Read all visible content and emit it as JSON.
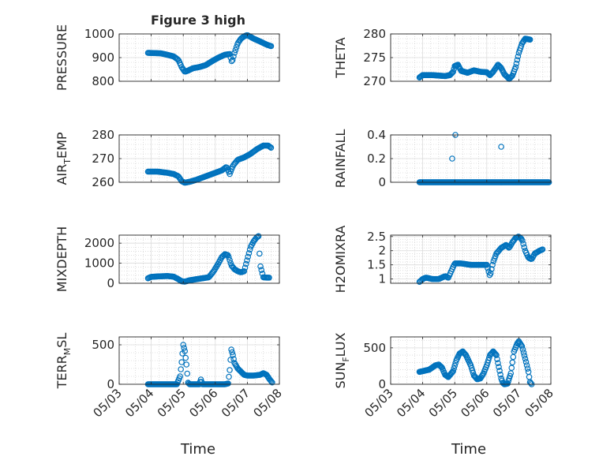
{
  "figure": {
    "title": "Figure 3 high",
    "xlabel": "Time",
    "x_tick_labels": [
      "05/03",
      "05/04",
      "05/05",
      "05/06",
      "05/07",
      "05/08"
    ],
    "marker_color": "#0072BD"
  },
  "chart_data": [
    {
      "type": "scatter",
      "name": "pressure",
      "ylabel": [
        "PRESSURE"
      ],
      "xlim": [
        0,
        5
      ],
      "ylim": [
        800,
        1000
      ],
      "yticks": [
        800,
        900,
        1000
      ],
      "ytick_labels": [
        "800",
        "900",
        "1000"
      ],
      "grid": true,
      "knots": [
        [
          0.9,
          920
        ],
        [
          1.3,
          918
        ],
        [
          1.5,
          912
        ],
        [
          1.7,
          905
        ],
        [
          1.85,
          890
        ],
        [
          1.95,
          860
        ],
        [
          2.05,
          840
        ],
        [
          2.15,
          845
        ],
        [
          2.3,
          855
        ],
        [
          2.5,
          860
        ],
        [
          2.7,
          868
        ],
        [
          2.9,
          885
        ],
        [
          3.1,
          900
        ],
        [
          3.3,
          912
        ],
        [
          3.45,
          915
        ],
        [
          3.52,
          880
        ],
        [
          3.6,
          920
        ],
        [
          3.7,
          960
        ],
        [
          3.8,
          980
        ],
        [
          3.9,
          990
        ],
        [
          4.0,
          995
        ],
        [
          4.2,
          980
        ],
        [
          4.4,
          968
        ],
        [
          4.6,
          955
        ],
        [
          4.75,
          948
        ]
      ],
      "step": 0.03
    },
    {
      "type": "scatter",
      "name": "theta",
      "ylabel": [
        "THETA"
      ],
      "xlim": [
        0,
        5
      ],
      "ylim": [
        270,
        280
      ],
      "yticks": [
        270,
        275,
        280
      ],
      "ytick_labels": [
        "270",
        "275",
        "280"
      ],
      "grid": true,
      "knots": [
        [
          0.9,
          270.8
        ],
        [
          1.0,
          271.3
        ],
        [
          1.3,
          271.3
        ],
        [
          1.7,
          271.1
        ],
        [
          1.85,
          271.3
        ],
        [
          1.95,
          272.0
        ],
        [
          2.0,
          273.2
        ],
        [
          2.1,
          273.5
        ],
        [
          2.2,
          272.2
        ],
        [
          2.4,
          271.8
        ],
        [
          2.6,
          272.3
        ],
        [
          2.8,
          272.0
        ],
        [
          3.0,
          271.9
        ],
        [
          3.1,
          271.3
        ],
        [
          3.2,
          272.0
        ],
        [
          3.35,
          273.5
        ],
        [
          3.45,
          272.8
        ],
        [
          3.55,
          271.5
        ],
        [
          3.7,
          270.5
        ],
        [
          3.8,
          271.2
        ],
        [
          3.9,
          273.0
        ],
        [
          4.0,
          276.0
        ],
        [
          4.1,
          278.0
        ],
        [
          4.2,
          279.0
        ],
        [
          4.35,
          278.8
        ]
      ],
      "step": 0.025
    },
    {
      "type": "scatter",
      "name": "air_temp",
      "ylabel": [
        "AIR",
        "T",
        "EMP"
      ],
      "xlim": [
        0,
        5
      ],
      "ylim": [
        260,
        280
      ],
      "yticks": [
        260,
        270,
        280
      ],
      "ytick_labels": [
        "260",
        "270",
        "280"
      ],
      "grid": true,
      "knots": [
        [
          0.9,
          264.5
        ],
        [
          1.2,
          264.5
        ],
        [
          1.5,
          264.0
        ],
        [
          1.7,
          263.5
        ],
        [
          1.85,
          262.5
        ],
        [
          1.95,
          260.5
        ],
        [
          2.05,
          259.8
        ],
        [
          2.2,
          260.2
        ],
        [
          2.4,
          261.0
        ],
        [
          2.6,
          262.0
        ],
        [
          2.8,
          263.0
        ],
        [
          3.0,
          264.0
        ],
        [
          3.2,
          265.0
        ],
        [
          3.35,
          266.5
        ],
        [
          3.45,
          263.5
        ],
        [
          3.55,
          267.0
        ],
        [
          3.7,
          269.5
        ],
        [
          3.9,
          270.5
        ],
        [
          4.1,
          272.0
        ],
        [
          4.3,
          274.0
        ],
        [
          4.5,
          275.5
        ],
        [
          4.65,
          275.5
        ],
        [
          4.75,
          274.5
        ]
      ],
      "step": 0.03
    },
    {
      "type": "scatter",
      "name": "rainfall",
      "ylabel": [
        "RAINFALL"
      ],
      "xlim": [
        0,
        5
      ],
      "ylim": [
        0,
        0.4
      ],
      "yticks": [
        0,
        0.2,
        0.4
      ],
      "ytick_labels": [
        "0",
        "0.2",
        "0.4"
      ],
      "grid": true,
      "knots": [
        [
          0.9,
          0
        ],
        [
          4.95,
          0
        ]
      ],
      "step": 0.02,
      "extra_points": [
        [
          1.92,
          0.2
        ],
        [
          2.02,
          0.4
        ],
        [
          3.45,
          0.3
        ]
      ]
    },
    {
      "type": "scatter",
      "name": "mixdepth",
      "ylabel": [
        "MIXDEPTH"
      ],
      "xlim": [
        0,
        5
      ],
      "ylim": [
        0,
        2400
      ],
      "yticks": [
        0,
        1000,
        2000
      ],
      "ytick_labels": [
        "0",
        "1000",
        "2000"
      ],
      "grid": true,
      "knots": [
        [
          0.9,
          250
        ],
        [
          1.0,
          320
        ],
        [
          1.2,
          340
        ],
        [
          1.5,
          360
        ],
        [
          1.7,
          330
        ],
        [
          1.85,
          200
        ],
        [
          1.95,
          100
        ],
        [
          2.05,
          80
        ],
        [
          2.2,
          150
        ],
        [
          2.4,
          200
        ],
        [
          2.6,
          250
        ],
        [
          2.8,
          300
        ],
        [
          2.95,
          600
        ],
        [
          3.1,
          1000
        ],
        [
          3.2,
          1300
        ],
        [
          3.3,
          1450
        ],
        [
          3.4,
          1400
        ],
        [
          3.5,
          900
        ],
        [
          3.6,
          700
        ],
        [
          3.7,
          600
        ],
        [
          3.8,
          550
        ],
        [
          3.9,
          600
        ],
        [
          4.0,
          1200
        ],
        [
          4.1,
          1800
        ],
        [
          4.2,
          2100
        ],
        [
          4.3,
          2300
        ],
        [
          4.35,
          2350
        ],
        [
          4.4,
          900
        ],
        [
          4.5,
          300
        ],
        [
          4.6,
          280
        ],
        [
          4.7,
          280
        ]
      ],
      "step": 0.03
    },
    {
      "type": "scatter",
      "name": "h2omixra",
      "ylabel": [
        "H2OMIXRA"
      ],
      "xlim": [
        0,
        5
      ],
      "ylim": [
        0.85,
        2.55
      ],
      "yticks": [
        1,
        1.5,
        2,
        2.5
      ],
      "ytick_labels": [
        "1",
        "1.5",
        "2",
        "2.5"
      ],
      "grid": true,
      "knots": [
        [
          0.9,
          0.9
        ],
        [
          1.0,
          1.0
        ],
        [
          1.1,
          1.05
        ],
        [
          1.3,
          1.0
        ],
        [
          1.5,
          1.0
        ],
        [
          1.7,
          1.1
        ],
        [
          1.8,
          1.05
        ],
        [
          1.9,
          1.3
        ],
        [
          2.0,
          1.55
        ],
        [
          2.2,
          1.55
        ],
        [
          2.5,
          1.5
        ],
        [
          2.8,
          1.5
        ],
        [
          3.0,
          1.5
        ],
        [
          3.1,
          1.1
        ],
        [
          3.2,
          1.6
        ],
        [
          3.3,
          1.9
        ],
        [
          3.45,
          2.1
        ],
        [
          3.6,
          2.2
        ],
        [
          3.7,
          2.1
        ],
        [
          3.8,
          2.3
        ],
        [
          3.9,
          2.45
        ],
        [
          4.0,
          2.5
        ],
        [
          4.1,
          2.4
        ],
        [
          4.2,
          2.0
        ],
        [
          4.3,
          1.75
        ],
        [
          4.4,
          1.7
        ],
        [
          4.5,
          1.9
        ],
        [
          4.65,
          2.0
        ],
        [
          4.75,
          2.05
        ]
      ],
      "step": 0.03
    },
    {
      "type": "scatter",
      "name": "terr_msl",
      "ylabel": [
        "TERR",
        "M",
        "SL"
      ],
      "xlim": [
        0,
        5
      ],
      "ylim": [
        0,
        600
      ],
      "yticks": [
        0,
        500
      ],
      "ytick_labels": [
        "0",
        "500"
      ],
      "grid": true,
      "knots": [
        [
          0.9,
          0
        ],
        [
          1.7,
          0
        ],
        [
          1.8,
          0
        ],
        [
          1.9,
          100
        ],
        [
          1.95,
          280
        ],
        [
          2.0,
          500
        ],
        [
          2.05,
          420
        ],
        [
          2.1,
          250
        ],
        [
          2.15,
          20
        ],
        [
          2.2,
          0
        ],
        [
          2.5,
          0
        ],
        [
          2.55,
          60
        ],
        [
          2.6,
          0
        ],
        [
          3.1,
          0
        ],
        [
          3.3,
          0
        ],
        [
          3.4,
          10
        ],
        [
          3.45,
          180
        ],
        [
          3.5,
          440
        ],
        [
          3.55,
          370
        ],
        [
          3.6,
          270
        ],
        [
          3.7,
          200
        ],
        [
          3.8,
          160
        ],
        [
          3.9,
          120
        ],
        [
          4.0,
          110
        ],
        [
          4.2,
          110
        ],
        [
          4.4,
          120
        ],
        [
          4.5,
          140
        ],
        [
          4.6,
          120
        ],
        [
          4.7,
          60
        ],
        [
          4.78,
          20
        ]
      ],
      "step": 0.025
    },
    {
      "type": "scatter",
      "name": "sun_flux",
      "ylabel": [
        "SUN",
        "F",
        "LUX"
      ],
      "xlim": [
        0,
        5
      ],
      "ylim": [
        0,
        650
      ],
      "yticks": [
        0,
        500
      ],
      "ytick_labels": [
        "0",
        "500"
      ],
      "grid": true,
      "knots": [
        [
          0.9,
          170
        ],
        [
          1.0,
          180
        ],
        [
          1.2,
          200
        ],
        [
          1.4,
          260
        ],
        [
          1.5,
          270
        ],
        [
          1.6,
          230
        ],
        [
          1.7,
          130
        ],
        [
          1.8,
          100
        ],
        [
          1.95,
          180
        ],
        [
          2.05,
          330
        ],
        [
          2.15,
          420
        ],
        [
          2.25,
          450
        ],
        [
          2.35,
          400
        ],
        [
          2.5,
          260
        ],
        [
          2.6,
          120
        ],
        [
          2.7,
          70
        ],
        [
          2.8,
          80
        ],
        [
          2.9,
          150
        ],
        [
          3.0,
          260
        ],
        [
          3.1,
          400
        ],
        [
          3.2,
          450
        ],
        [
          3.3,
          400
        ],
        [
          3.35,
          290
        ],
        [
          3.45,
          80
        ],
        [
          3.5,
          20
        ],
        [
          3.55,
          0
        ],
        [
          3.65,
          10
        ],
        [
          3.75,
          150
        ],
        [
          3.85,
          450
        ],
        [
          3.95,
          560
        ],
        [
          4.0,
          590
        ],
        [
          4.1,
          520
        ],
        [
          4.2,
          350
        ],
        [
          4.3,
          170
        ],
        [
          4.35,
          30
        ],
        [
          4.4,
          0
        ]
      ],
      "step": 0.025
    }
  ]
}
